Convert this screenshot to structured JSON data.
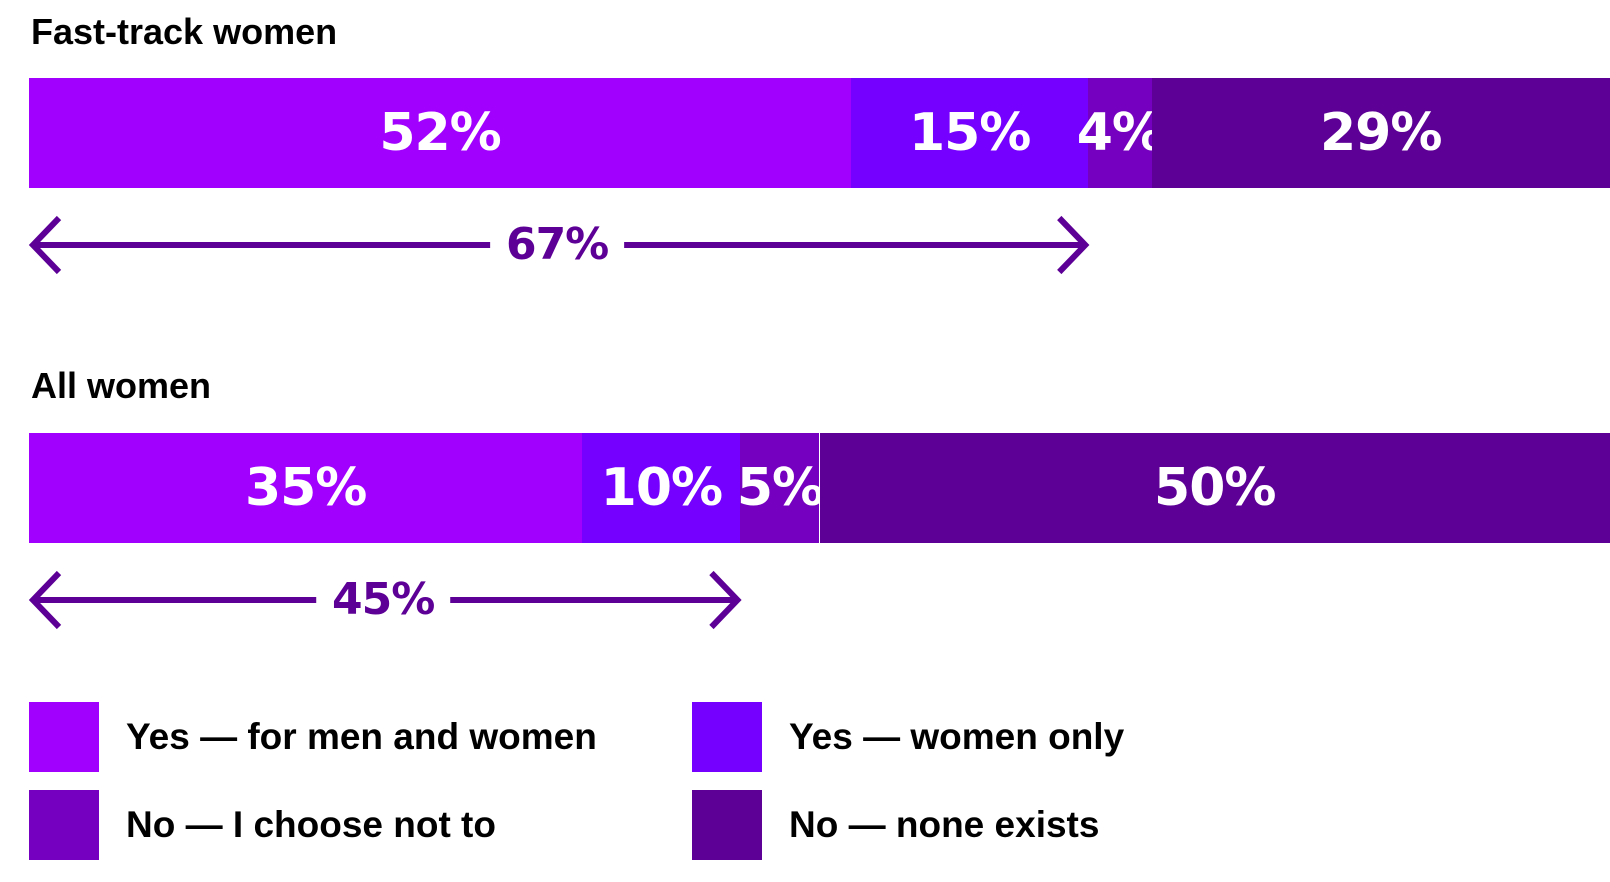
{
  "chart_data": {
    "type": "bar",
    "stacked": true,
    "orientation": "horizontal",
    "categories": [
      "Fast-track women",
      "All women"
    ],
    "series": [
      {
        "name": "Yes — for men and women",
        "color": "#a100ff",
        "values": [
          52,
          35
        ]
      },
      {
        "name": "Yes — women only",
        "color": "#7500ff",
        "values": [
          15,
          10
        ]
      },
      {
        "name": "No — I choose not to",
        "color": "#7500c0",
        "values": [
          4,
          5
        ]
      },
      {
        "name": "No — none exists",
        "color": "#5c0096",
        "values": [
          29,
          50
        ]
      }
    ],
    "segment_labels": [
      [
        "52%",
        "15%",
        "4%",
        "29%"
      ],
      [
        "35%",
        "10%",
        "5%",
        "50%"
      ]
    ],
    "brackets": [
      {
        "value": 67,
        "label": "67%"
      },
      {
        "value": 45,
        "label": "45%"
      }
    ],
    "legend_placement": "bottom",
    "arrow_color": "#5c0096",
    "xlim": [
      0,
      100
    ]
  }
}
